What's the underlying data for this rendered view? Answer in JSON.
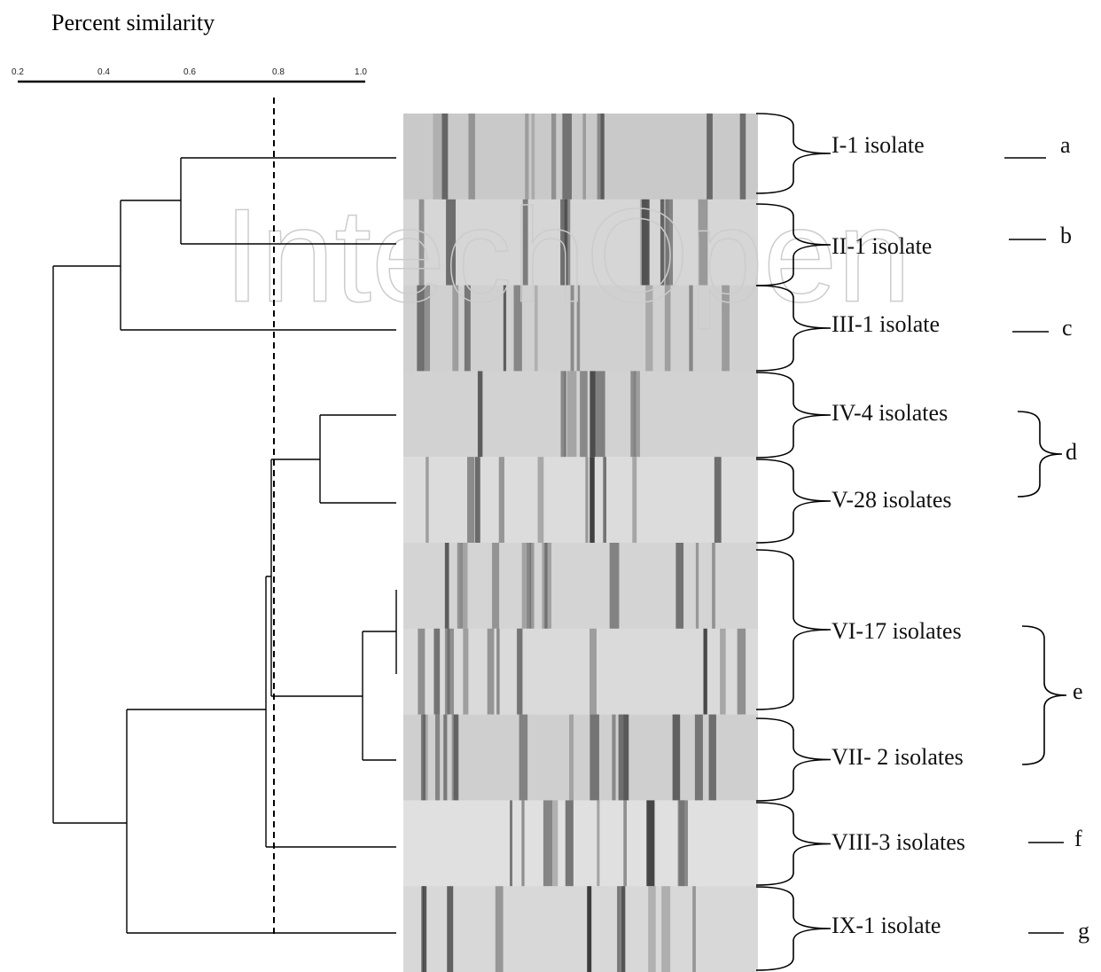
{
  "scale": {
    "title": "Percent similarity",
    "ticks": [
      "0.2",
      "0.4",
      "0.6",
      "0.8",
      "1.0"
    ]
  },
  "watermark": "IntechOpen",
  "profiles": [
    "I-1 isolate",
    "II-1 isolate",
    "III-1 isolate",
    "IV-4 isolates",
    "V-28 isolates",
    "VI-17 isolates",
    "VII- 2 isolates",
    "VIII-3 isolates",
    "IX-1 isolate"
  ],
  "groups": [
    "a",
    "b",
    "c",
    "d",
    "e",
    "f",
    "g"
  ]
}
